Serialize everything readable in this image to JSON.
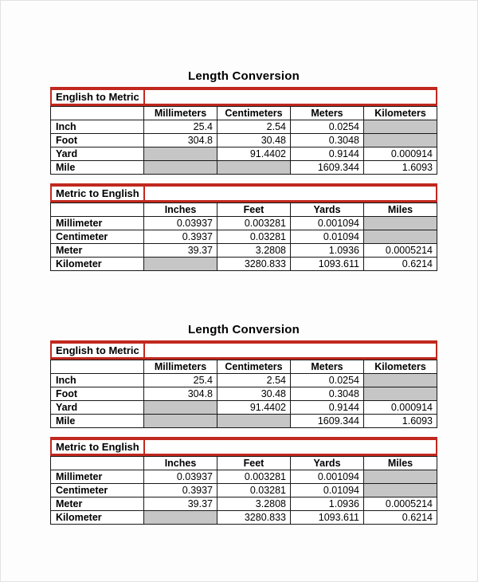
{
  "colors": {
    "accent_red": "#c1281e",
    "empty_cell_gray": "#c6c6c6",
    "grid_black": "#181818",
    "page_background": "#fdfdfd"
  },
  "sections": [
    {
      "title": "Length Conversion",
      "tables": [
        {
          "band_label": "English to Metric",
          "headers": [
            "",
            "Millimeters",
            "Centimeters",
            "Meters",
            "Kilometers"
          ],
          "rows": [
            {
              "label": "Inch",
              "values": [
                "25.4",
                "2.54",
                "0.0254",
                null
              ]
            },
            {
              "label": "Foot",
              "values": [
                "304.8",
                "30.48",
                "0.3048",
                null
              ]
            },
            {
              "label": "Yard",
              "values": [
                null,
                "91.4402",
                "0.9144",
                "0.000914"
              ]
            },
            {
              "label": "Mile",
              "values": [
                null,
                null,
                "1609.344",
                "1.6093"
              ]
            }
          ]
        },
        {
          "band_label": "Metric to English",
          "headers": [
            "",
            "Inches",
            "Feet",
            "Yards",
            "Miles"
          ],
          "rows": [
            {
              "label": "Millimeter",
              "values": [
                "0.03937",
                "0.003281",
                "0.001094",
                null
              ]
            },
            {
              "label": "Centimeter",
              "values": [
                "0.3937",
                "0.03281",
                "0.01094",
                null
              ]
            },
            {
              "label": "Meter",
              "values": [
                "39.37",
                "3.2808",
                "1.0936",
                "0.0005214"
              ]
            },
            {
              "label": "Kilometer",
              "values": [
                null,
                "3280.833",
                "1093.611",
                "0.6214"
              ]
            }
          ]
        }
      ]
    },
    {
      "title": "Length Conversion",
      "tables": [
        {
          "band_label": "English to Metric",
          "headers": [
            "",
            "Millimeters",
            "Centimeters",
            "Meters",
            "Kilometers"
          ],
          "rows": [
            {
              "label": "Inch",
              "values": [
                "25.4",
                "2.54",
                "0.0254",
                null
              ]
            },
            {
              "label": "Foot",
              "values": [
                "304.8",
                "30.48",
                "0.3048",
                null
              ]
            },
            {
              "label": "Yard",
              "values": [
                null,
                "91.4402",
                "0.9144",
                "0.000914"
              ]
            },
            {
              "label": "Mile",
              "values": [
                null,
                null,
                "1609.344",
                "1.6093"
              ]
            }
          ]
        },
        {
          "band_label": "Metric to English",
          "headers": [
            "",
            "Inches",
            "Feet",
            "Yards",
            "Miles"
          ],
          "rows": [
            {
              "label": "Millimeter",
              "values": [
                "0.03937",
                "0.003281",
                "0.001094",
                null
              ]
            },
            {
              "label": "Centimeter",
              "values": [
                "0.3937",
                "0.03281",
                "0.01094",
                null
              ]
            },
            {
              "label": "Meter",
              "values": [
                "39.37",
                "3.2808",
                "1.0936",
                "0.0005214"
              ]
            },
            {
              "label": "Kilometer",
              "values": [
                null,
                "3280.833",
                "1093.611",
                "0.6214"
              ]
            }
          ]
        }
      ]
    }
  ]
}
